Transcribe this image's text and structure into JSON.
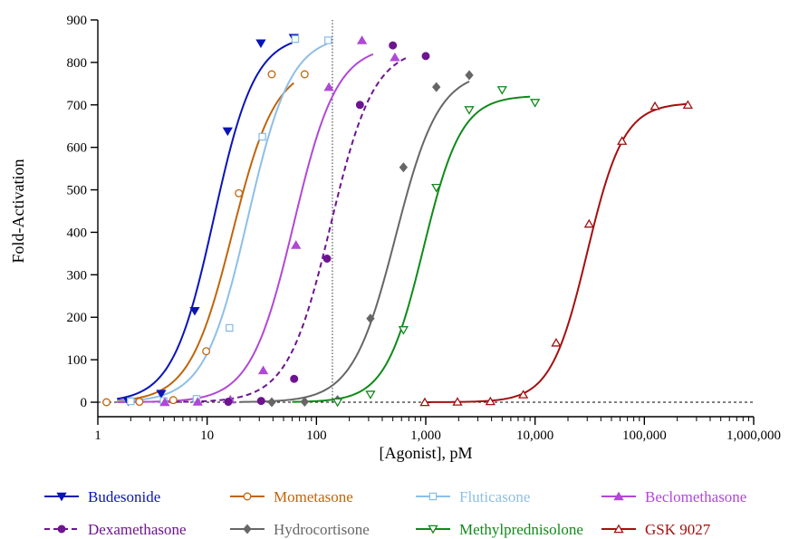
{
  "chart_data": {
    "type": "line",
    "title": "",
    "xlabel": "[Agonist], pM",
    "ylabel": "Fold-Activation",
    "xscale": "log",
    "xlim": [
      1,
      1000000
    ],
    "ylim": [
      0,
      900
    ],
    "x_ticks": [
      1,
      10,
      100,
      1000,
      10000,
      100000,
      1000000
    ],
    "x_tick_labels": [
      "1",
      "10",
      "100",
      "1,000",
      "10,000",
      "100,000",
      "1,000,000"
    ],
    "y_ticks": [
      0,
      100,
      200,
      300,
      400,
      500,
      600,
      700,
      800,
      900
    ],
    "y_tick_labels": [
      "0",
      "100",
      "200",
      "300",
      "400",
      "500",
      "600",
      "700",
      "800",
      "900"
    ],
    "baseline_y": 0,
    "vertical_reference_x": 140,
    "legend_position": "bottom",
    "series": [
      {
        "name": "Budesonide",
        "color": "#0a14b8",
        "marker": "triangle-down",
        "filled": true,
        "dashed": false,
        "fit": {
          "bottom": 0,
          "top": 865,
          "ec50": 11.5,
          "hill": 2.3,
          "xmin": 1.5,
          "xmax": 60
        },
        "points": [
          [
            1.9,
            2
          ],
          [
            3.8,
            20
          ],
          [
            7.7,
            215
          ],
          [
            15.4,
            638
          ],
          [
            31,
            845
          ],
          [
            62,
            858
          ]
        ]
      },
      {
        "name": "Mometasone",
        "color": "#c0650c",
        "marker": "circle",
        "filled": false,
        "dashed": false,
        "fit": {
          "bottom": 0,
          "top": 795,
          "ec50": 17,
          "hill": 2.2,
          "xmin": 1.5,
          "xmax": 62
        },
        "points": [
          [
            1.2,
            0
          ],
          [
            2.4,
            1
          ],
          [
            4.9,
            5
          ],
          [
            9.8,
            120
          ],
          [
            19.5,
            492
          ],
          [
            39,
            772
          ],
          [
            78,
            772
          ]
        ]
      },
      {
        "name": "Fluticasone",
        "color": "#8dbfe8",
        "marker": "square",
        "filled": false,
        "dashed": false,
        "fit": {
          "bottom": 0,
          "top": 865,
          "ec50": 23.5,
          "hill": 2.2,
          "xmin": 1.5,
          "xmax": 125
        },
        "points": [
          [
            2,
            2
          ],
          [
            4,
            3
          ],
          [
            8,
            8
          ],
          [
            16,
            175
          ],
          [
            32,
            625
          ],
          [
            64,
            855
          ],
          [
            128,
            852
          ]
        ]
      },
      {
        "name": "Beclomethasone",
        "color": "#b048d6",
        "marker": "triangle-up",
        "filled": true,
        "dashed": false,
        "fit": {
          "bottom": 0,
          "top": 840,
          "ec50": 62,
          "hill": 2.2,
          "xmin": 1.5,
          "xmax": 330
        },
        "points": [
          [
            4.1,
            0
          ],
          [
            8.2,
            1
          ],
          [
            16.3,
            6
          ],
          [
            32.6,
            75
          ],
          [
            65,
            370
          ],
          [
            130,
            742
          ],
          [
            261,
            852
          ],
          [
            522,
            812
          ]
        ]
      },
      {
        "name": "Dexamethasone",
        "color": "#6e1490",
        "marker": "circle",
        "filled": true,
        "dashed": true,
        "fit": {
          "bottom": 0,
          "top": 835,
          "ec50": 135,
          "hill": 2.2,
          "xmin": 5,
          "xmax": 700
        },
        "points": [
          [
            15.6,
            1
          ],
          [
            31.2,
            3
          ],
          [
            62.5,
            55
          ],
          [
            125,
            338
          ],
          [
            250,
            700
          ],
          [
            500,
            840
          ],
          [
            1000,
            815
          ]
        ]
      },
      {
        "name": "Hydrocortisone",
        "color": "#666666",
        "marker": "diamond",
        "filled": true,
        "dashed": false,
        "fit": {
          "bottom": 0,
          "top": 780,
          "ec50": 530,
          "hill": 2.2,
          "xmin": 20,
          "xmax": 2500
        },
        "points": [
          [
            39,
            0
          ],
          [
            78,
            1
          ],
          [
            156,
            5
          ],
          [
            312,
            197
          ],
          [
            625,
            553
          ],
          [
            1250,
            742
          ],
          [
            2500,
            770
          ]
        ]
      },
      {
        "name": "Methylprednisolone",
        "color": "#0f8a1a",
        "marker": "triangle-down",
        "filled": false,
        "dashed": false,
        "fit": {
          "bottom": 0,
          "top": 722,
          "ec50": 950,
          "hill": 2.5,
          "xmin": 60,
          "xmax": 9000
        },
        "points": [
          [
            156,
            0
          ],
          [
            312,
            18
          ],
          [
            625,
            170
          ],
          [
            1250,
            505
          ],
          [
            2500,
            688
          ],
          [
            5000,
            735
          ],
          [
            10000,
            705
          ]
        ]
      },
      {
        "name": "GSK 9027",
        "color": "#a31010",
        "marker": "triangle-up",
        "filled": false,
        "dashed": false,
        "fit": {
          "bottom": 0,
          "top": 705,
          "ec50": 30000,
          "hill": 2.6,
          "xmin": 950,
          "xmax": 250000
        },
        "points": [
          [
            980,
            0
          ],
          [
            1950,
            1
          ],
          [
            3900,
            2
          ],
          [
            7800,
            18
          ],
          [
            15600,
            140
          ],
          [
            31200,
            420
          ],
          [
            62500,
            615
          ],
          [
            125000,
            697
          ],
          [
            250000,
            700
          ]
        ]
      }
    ]
  }
}
